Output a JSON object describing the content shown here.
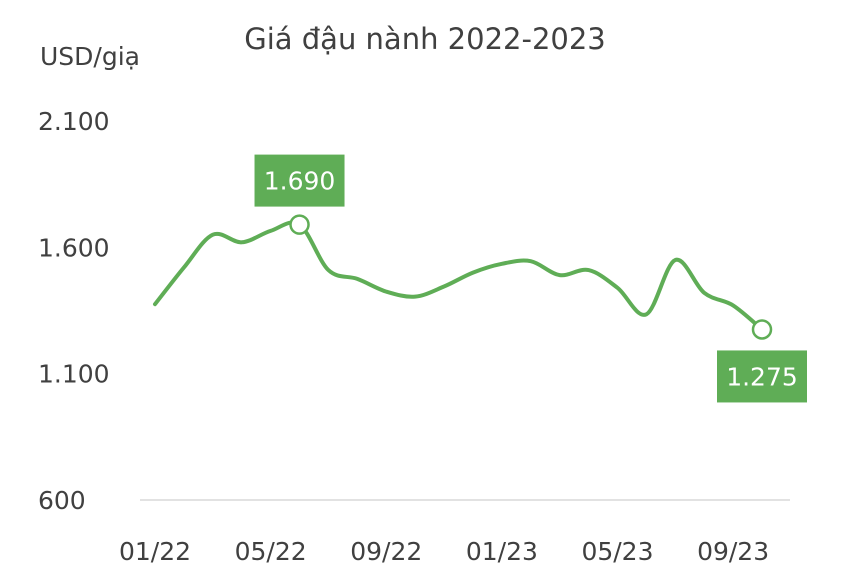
{
  "chart_data": {
    "type": "line",
    "title": "Giá đậu nành 2022-2023",
    "ylabel": "USD/giạ",
    "xlabel": "",
    "ylim": [
      600,
      2100
    ],
    "yticks": [
      600,
      1100,
      1600,
      2100
    ],
    "ytick_labels": [
      "600",
      "1.100",
      "1.600",
      "2.100"
    ],
    "xtick_labels": [
      "01/22",
      "05/22",
      "09/22",
      "01/23",
      "05/23",
      "09/23"
    ],
    "x_range": [
      "01/22",
      "10/23"
    ],
    "grid": false,
    "legend": "none",
    "series": [
      {
        "color": "#5fad56",
        "points": [
          {
            "x": "01/22",
            "y": 1375
          },
          {
            "x": "02/22",
            "y": 1520
          },
          {
            "x": "03/22",
            "y": 1650
          },
          {
            "x": "04/22",
            "y": 1620
          },
          {
            "x": "05/22",
            "y": 1665
          },
          {
            "x": "06/22",
            "y": 1690
          },
          {
            "x": "07/22",
            "y": 1510
          },
          {
            "x": "08/22",
            "y": 1475
          },
          {
            "x": "09/22",
            "y": 1425
          },
          {
            "x": "10/22",
            "y": 1405
          },
          {
            "x": "11/22",
            "y": 1445
          },
          {
            "x": "12/22",
            "y": 1500
          },
          {
            "x": "01/23",
            "y": 1535
          },
          {
            "x": "02/23",
            "y": 1545
          },
          {
            "x": "03/23",
            "y": 1490
          },
          {
            "x": "04/23",
            "y": 1510
          },
          {
            "x": "05/23",
            "y": 1440
          },
          {
            "x": "06/23",
            "y": 1335
          },
          {
            "x": "07/23",
            "y": 1550
          },
          {
            "x": "08/23",
            "y": 1420
          },
          {
            "x": "09/23",
            "y": 1370
          },
          {
            "x": "10/23",
            "y": 1275
          }
        ]
      }
    ],
    "annotations": [
      {
        "x": "06/22",
        "y": 1690,
        "label": "1.690",
        "position": "above"
      },
      {
        "x": "10/23",
        "y": 1275,
        "label": "1.275",
        "position": "below"
      }
    ],
    "colors": {
      "line": "#5fad56",
      "label_bg": "#5fad56",
      "label_text": "#ffffff",
      "axis": "#d9d9d9",
      "text": "#404040"
    }
  }
}
